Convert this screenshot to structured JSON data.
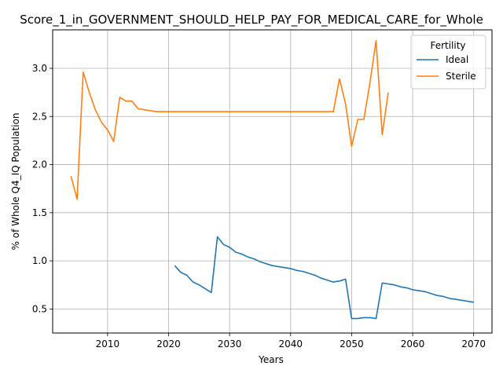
{
  "chart_data": {
    "type": "line",
    "title": "Score_1_in_GOVERNMENT_SHOULD_HELP_PAY_FOR_MEDICAL_CARE_for_Whole",
    "xlabel": "Years",
    "ylabel": "% of Whole Q4_IQ Population",
    "xlim": [
      2001,
      2073
    ],
    "ylim": [
      0.25,
      3.4
    ],
    "xticks": [
      2010,
      2020,
      2030,
      2040,
      2050,
      2060,
      2070
    ],
    "yticks": [
      0.5,
      1.0,
      1.5,
      2.0,
      2.5,
      3.0
    ],
    "grid": true,
    "legend": {
      "title": "Fertility",
      "position": "upper-right"
    },
    "series": [
      {
        "name": "Ideal",
        "color": "#1f77b4",
        "x": [
          2021,
          2022,
          2023,
          2024,
          2025,
          2026,
          2027,
          2028,
          2029,
          2030,
          2031,
          2032,
          2033,
          2034,
          2035,
          2036,
          2037,
          2038,
          2039,
          2040,
          2041,
          2042,
          2043,
          2044,
          2045,
          2046,
          2047,
          2048,
          2049,
          2050,
          2051,
          2052,
          2053,
          2054,
          2055,
          2056,
          2057,
          2058,
          2059,
          2060,
          2061,
          2062,
          2063,
          2064,
          2065,
          2066,
          2067,
          2068,
          2069,
          2070
        ],
        "y": [
          0.95,
          0.88,
          0.85,
          0.78,
          0.75,
          0.71,
          0.67,
          1.25,
          1.17,
          1.14,
          1.09,
          1.07,
          1.04,
          1.02,
          0.99,
          0.97,
          0.95,
          0.94,
          0.93,
          0.92,
          0.9,
          0.89,
          0.87,
          0.85,
          0.82,
          0.8,
          0.78,
          0.79,
          0.81,
          0.4,
          0.4,
          0.41,
          0.41,
          0.4,
          0.77,
          0.76,
          0.75,
          0.73,
          0.72,
          0.7,
          0.69,
          0.68,
          0.66,
          0.64,
          0.63,
          0.61,
          0.6,
          0.59,
          0.58,
          0.57
        ]
      },
      {
        "name": "Sterile",
        "color": "#ff7f0e",
        "x": [
          2004,
          2005,
          2006,
          2007,
          2008,
          2009,
          2010,
          2011,
          2012,
          2013,
          2014,
          2015,
          2016,
          2017,
          2018,
          2019,
          2020,
          2021,
          2022,
          2023,
          2024,
          2025,
          2026,
          2027,
          2028,
          2029,
          2030,
          2031,
          2032,
          2033,
          2034,
          2035,
          2036,
          2037,
          2038,
          2039,
          2040,
          2041,
          2042,
          2043,
          2044,
          2045,
          2046,
          2047,
          2048,
          2049,
          2050,
          2051,
          2052,
          2053,
          2054,
          2055,
          2056
        ],
        "y": [
          1.88,
          1.64,
          2.96,
          2.75,
          2.57,
          2.44,
          2.36,
          2.24,
          2.7,
          2.66,
          2.66,
          2.58,
          2.57,
          2.56,
          2.55,
          2.55,
          2.55,
          2.55,
          2.55,
          2.55,
          2.55,
          2.55,
          2.55,
          2.55,
          2.55,
          2.55,
          2.55,
          2.55,
          2.55,
          2.55,
          2.55,
          2.55,
          2.55,
          2.55,
          2.55,
          2.55,
          2.55,
          2.55,
          2.55,
          2.55,
          2.55,
          2.55,
          2.55,
          2.55,
          2.89,
          2.63,
          2.19,
          2.47,
          2.47,
          2.85,
          3.29,
          2.31,
          2.75
        ]
      }
    ]
  }
}
